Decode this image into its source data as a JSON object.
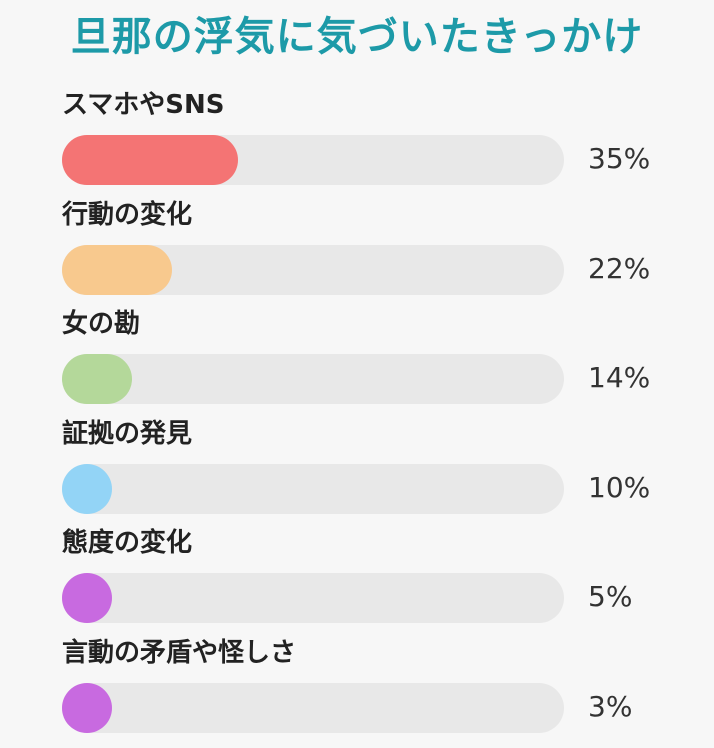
{
  "chart_data": {
    "type": "bar",
    "title": "旦那の浮気に気づいたきっかけ",
    "categories": [
      "スマホやSNS",
      "行動の変化",
      "女の勘",
      "証拠の発見",
      "態度の変化",
      "言動の矛盾や怪しさ"
    ],
    "values": [
      35,
      22,
      14,
      10,
      5,
      3
    ],
    "value_labels": [
      "35%",
      "22%",
      "14%",
      "10%",
      "5%",
      "3%"
    ],
    "colors": [
      "#f47474",
      "#f8c98e",
      "#b4d89a",
      "#93d4f6",
      "#c86ae0",
      "#c86ae0"
    ],
    "unit": "%",
    "xlim": [
      0,
      100
    ],
    "orientation": "horizontal",
    "grid": false,
    "legend": "none"
  }
}
